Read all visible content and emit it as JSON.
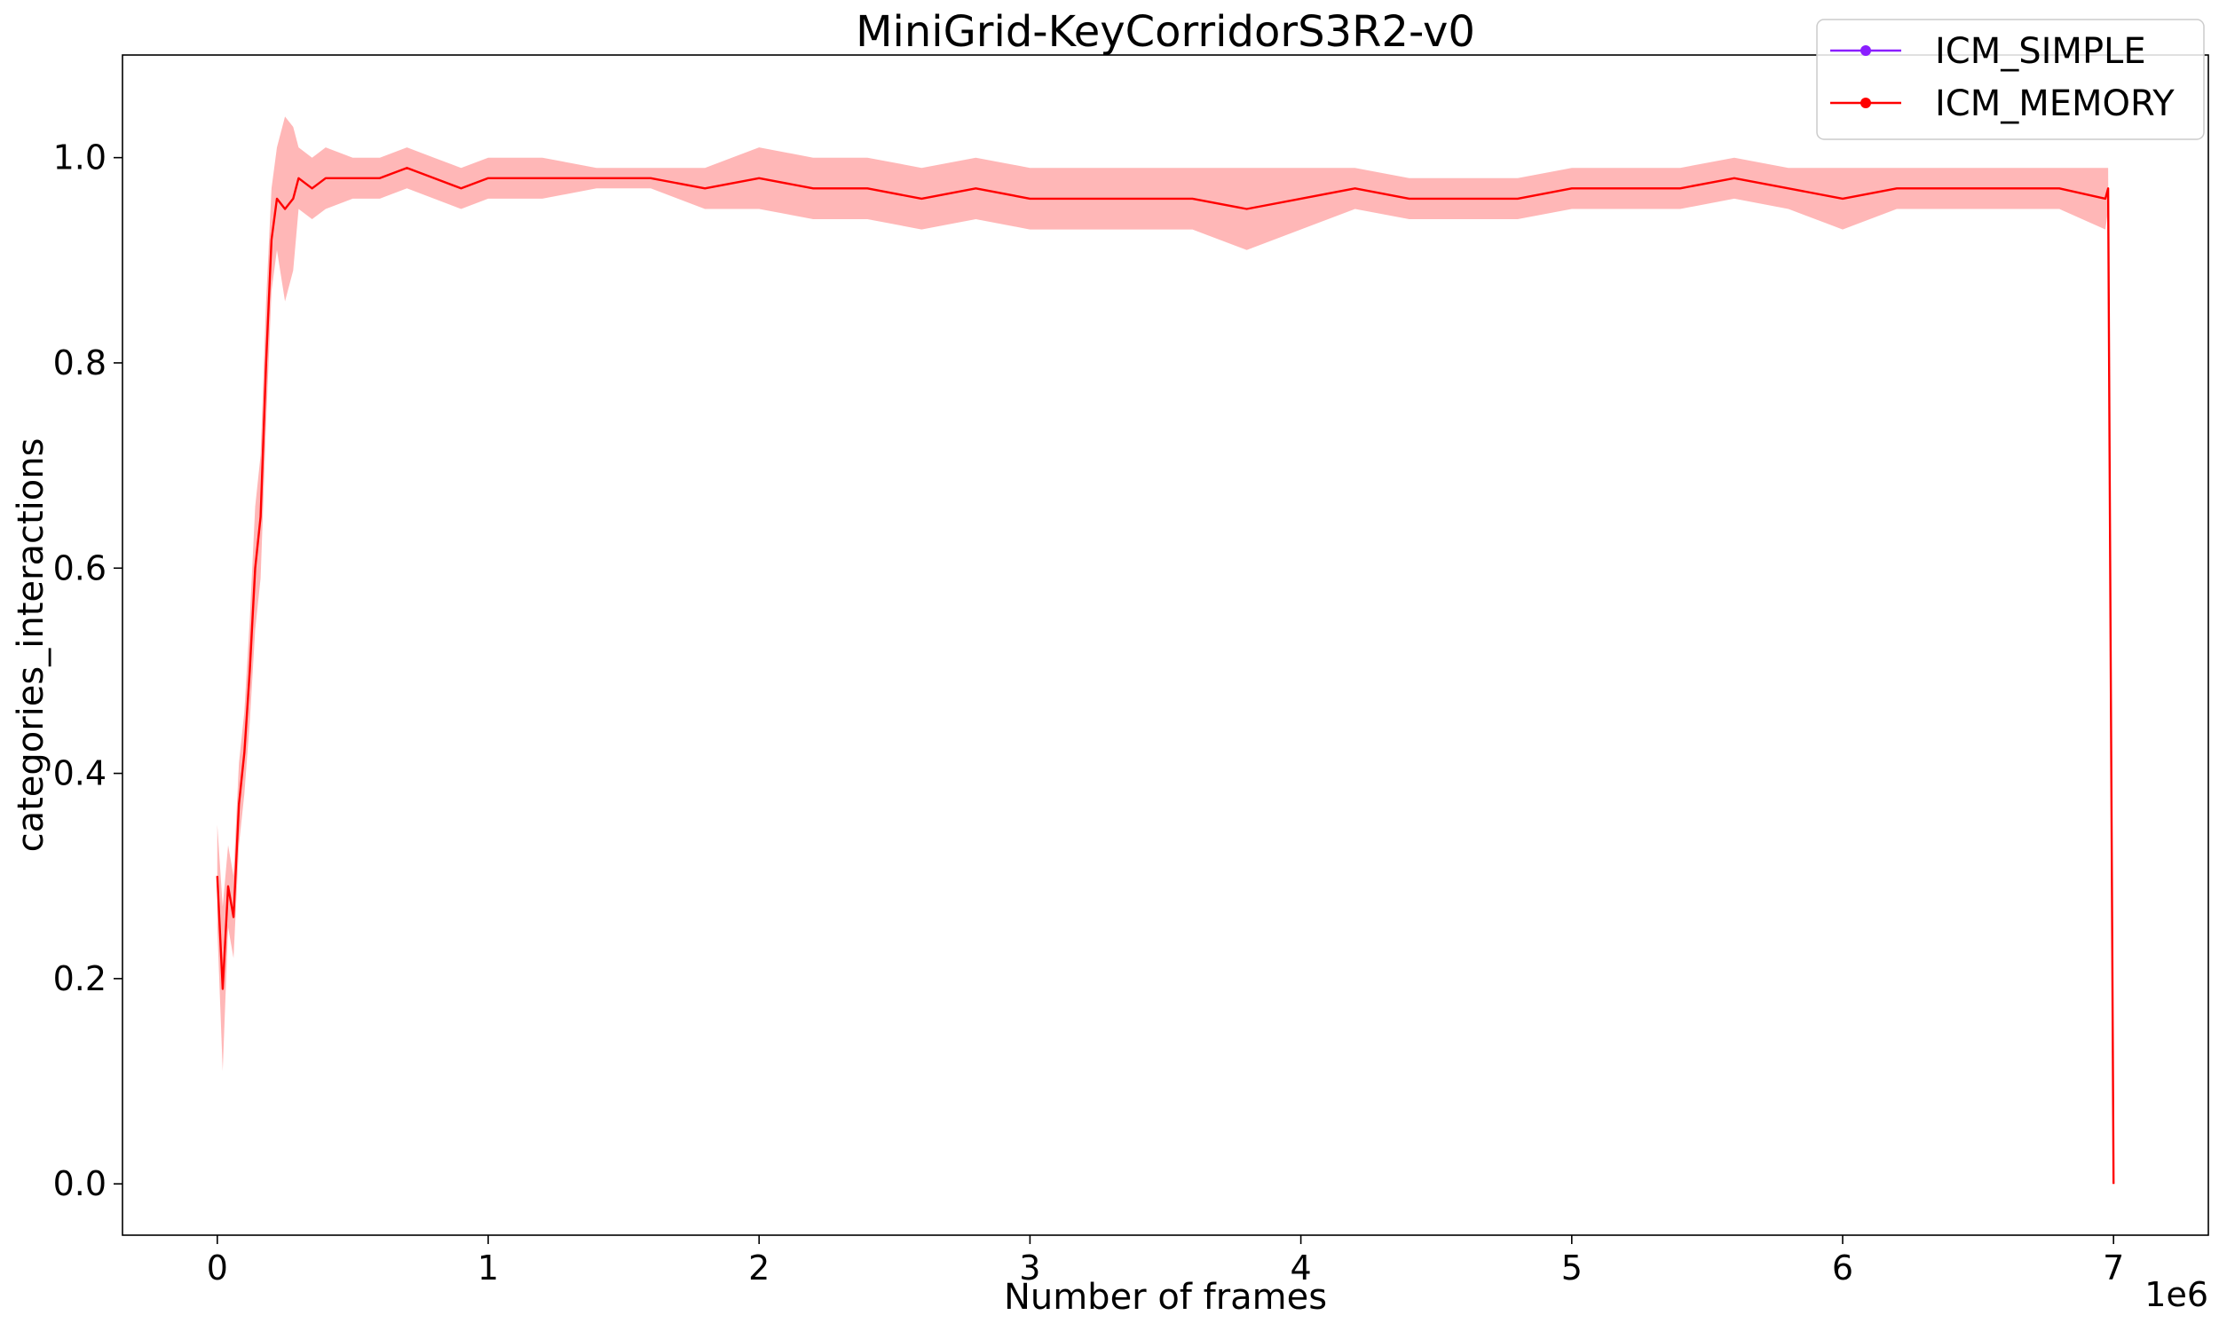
{
  "chart_data": {
    "type": "line",
    "title": "MiniGrid-KeyCorridorS3R2-v0",
    "xlabel": "Number of frames",
    "ylabel": "categories_interactions",
    "x_offset_label": "1e6",
    "x_scale": 1000000,
    "xlim": [
      -0.35,
      7.35
    ],
    "ylim": [
      -0.05,
      1.1
    ],
    "xticks": [
      0,
      1,
      2,
      3,
      4,
      5,
      6,
      7
    ],
    "yticks": [
      0.0,
      0.2,
      0.4,
      0.6,
      0.8,
      1.0
    ],
    "ytick_labels": [
      "0.0",
      "0.2",
      "0.4",
      "0.6",
      "0.8",
      "1.0"
    ],
    "grid": false,
    "legend_position": "top-right",
    "series": [
      {
        "name": "ICM_SIMPLE",
        "color": "#8a1eff",
        "x": [],
        "y": []
      },
      {
        "name": "ICM_MEMORY",
        "color": "#ff0000",
        "band_color": "#ff9999",
        "x": [
          0.0,
          0.02,
          0.04,
          0.06,
          0.08,
          0.1,
          0.12,
          0.14,
          0.16,
          0.18,
          0.2,
          0.22,
          0.25,
          0.28,
          0.3,
          0.35,
          0.4,
          0.5,
          0.6,
          0.7,
          0.8,
          0.9,
          1.0,
          1.2,
          1.4,
          1.6,
          1.8,
          2.0,
          2.2,
          2.4,
          2.6,
          2.8,
          3.0,
          3.2,
          3.4,
          3.6,
          3.8,
          4.0,
          4.2,
          4.4,
          4.6,
          4.8,
          5.0,
          5.2,
          5.4,
          5.6,
          5.8,
          6.0,
          6.2,
          6.4,
          6.6,
          6.8,
          6.97,
          6.98,
          7.0
        ],
        "y": [
          0.3,
          0.19,
          0.29,
          0.26,
          0.37,
          0.42,
          0.5,
          0.6,
          0.65,
          0.8,
          0.92,
          0.96,
          0.95,
          0.96,
          0.98,
          0.97,
          0.98,
          0.98,
          0.98,
          0.99,
          0.98,
          0.97,
          0.98,
          0.98,
          0.98,
          0.98,
          0.97,
          0.98,
          0.97,
          0.97,
          0.96,
          0.97,
          0.96,
          0.96,
          0.96,
          0.96,
          0.95,
          0.96,
          0.97,
          0.96,
          0.96,
          0.96,
          0.97,
          0.97,
          0.97,
          0.98,
          0.97,
          0.96,
          0.97,
          0.97,
          0.97,
          0.97,
          0.96,
          0.97,
          0.0
        ],
        "band_half_width": [
          0.05,
          0.08,
          0.04,
          0.04,
          0.04,
          0.04,
          0.05,
          0.06,
          0.06,
          0.06,
          0.05,
          0.05,
          0.09,
          0.07,
          0.03,
          0.03,
          0.03,
          0.02,
          0.02,
          0.02,
          0.02,
          0.02,
          0.02,
          0.02,
          0.01,
          0.01,
          0.02,
          0.03,
          0.03,
          0.03,
          0.03,
          0.03,
          0.03,
          0.03,
          0.03,
          0.03,
          0.04,
          0.03,
          0.02,
          0.02,
          0.02,
          0.02,
          0.02,
          0.02,
          0.02,
          0.02,
          0.02,
          0.03,
          0.02,
          0.02,
          0.02,
          0.02,
          0.03,
          0.02,
          0.0
        ]
      }
    ]
  }
}
